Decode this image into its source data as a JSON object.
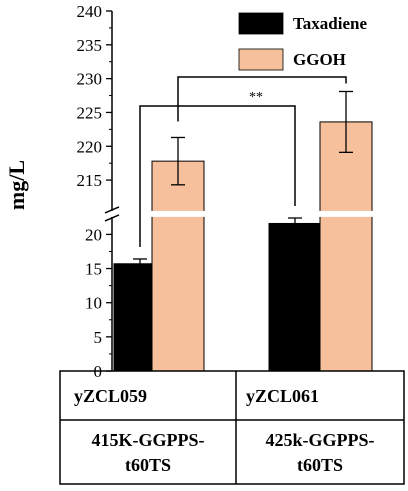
{
  "chart_data": {
    "type": "bar",
    "ylabel": "mg/L",
    "y_break": {
      "lower_range": [
        0,
        23
      ],
      "upper_range": [
        210,
        240
      ]
    },
    "y_ticks_lower": [
      0,
      5,
      10,
      15,
      20
    ],
    "y_ticks_upper": [
      215,
      220,
      225,
      230,
      235,
      240
    ],
    "categories": [
      "yZCL059",
      "yZCL061"
    ],
    "category_details": [
      "415K-GGPPS-t60TS",
      "425k-GGPPS-t60TS"
    ],
    "category_details_lines": [
      [
        "415K-GGPPS-",
        "t60TS"
      ],
      [
        "425k-GGPPS-",
        "t60TS"
      ]
    ],
    "series": [
      {
        "name": "Taxadiene",
        "values": [
          15.7,
          21.6
        ],
        "errors": [
          0.7,
          0.8
        ],
        "color": "#000000"
      },
      {
        "name": "GGOH",
        "values": [
          217.8,
          223.6
        ],
        "errors": [
          3.5,
          4.5
        ],
        "color": "#F5C09B"
      }
    ],
    "significance": [
      {
        "label": "*",
        "between": [
          "yZCL059 GGOH",
          "yZCL061 GGOH"
        ]
      },
      {
        "label": "**",
        "between": [
          "yZCL059 Taxadiene",
          "yZCL061 Taxadiene"
        ]
      }
    ],
    "legend_position": "top-right",
    "grid": false
  }
}
